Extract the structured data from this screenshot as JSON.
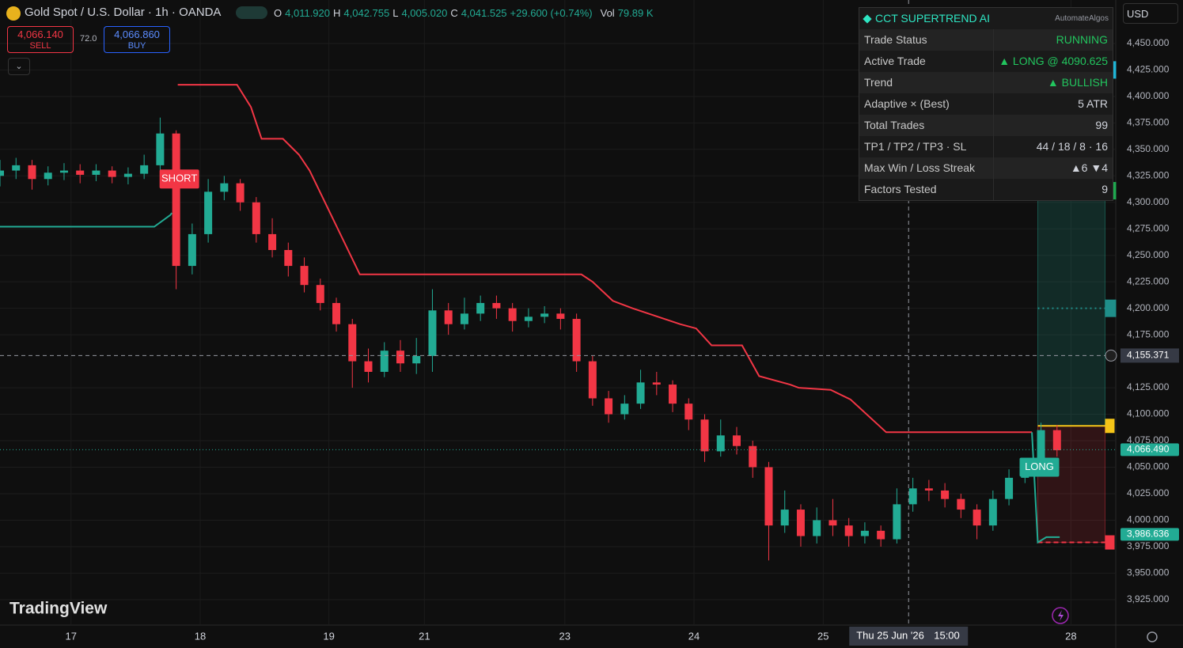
{
  "header": {
    "title": "Gold Spot / U.S. Dollar · 1h · OANDA",
    "ohlc": [
      {
        "key": "O",
        "value": "4,011.920"
      },
      {
        "key": "H",
        "value": "4,042.755"
      },
      {
        "key": "L",
        "value": "4,005.020"
      },
      {
        "key": "C",
        "value": "4,041.525"
      }
    ],
    "change": "+29.600 (+0.74%)",
    "volume_key": "Vol",
    "volume": "79.89 K"
  },
  "order": {
    "sell_price": "4,066.140",
    "sell": "SELL",
    "spread": "72.0",
    "buy_price": "4,066.860",
    "buy": "BUY"
  },
  "currency": "USD",
  "watermark": "TradingView",
  "panel": {
    "title": "CCT SUPERTREND AI",
    "author": "AutomateAlgos",
    "rows": [
      [
        "Trade Status",
        "RUNNING"
      ],
      [
        "Active Trade",
        "▲ LONG @ 4090.625"
      ],
      [
        "Trend",
        "▲ BULLISH"
      ],
      [
        "Adaptive × (Best)",
        "5  ATR"
      ],
      [
        "Total Trades",
        "99"
      ],
      [
        "TP1 / TP2 / TP3 · SL",
        "44 / 18 / 8 · 16"
      ],
      [
        "Max Win / Loss Streak",
        "▲6  ▼4"
      ],
      [
        "Factors Tested",
        "9"
      ]
    ],
    "value_colors": [
      "#22c55e",
      "#22c55e",
      "#22c55e",
      "#d1d4dc",
      "#d1d4dc",
      "#d1d4dc",
      "#d1d4dc",
      "#d1d4dc"
    ]
  },
  "chart_data": {
    "type": "candlestick",
    "up_color": "#22ab94",
    "down_color": "#f23645",
    "x": [
      0,
      3,
      6,
      9,
      12,
      15,
      18,
      21,
      24,
      27,
      30,
      33,
      36,
      39,
      42,
      45,
      48,
      51,
      54,
      57,
      60,
      63,
      66,
      69,
      72,
      75,
      78,
      81,
      84,
      87,
      90,
      93,
      96,
      99,
      102,
      105,
      108,
      111,
      114,
      117,
      120,
      123,
      126,
      129,
      132,
      135,
      138,
      141,
      144,
      147,
      150,
      153,
      156,
      159,
      162,
      165,
      168,
      171,
      174,
      177,
      180,
      183,
      186,
      189,
      192,
      195,
      198
    ],
    "open": [
      4325,
      4330,
      4335,
      4322,
      4328,
      4330,
      4326,
      4330,
      4324,
      4327,
      4335,
      4365,
      4240,
      4270,
      4310,
      4318,
      4300,
      4270,
      4255,
      4240,
      4222,
      4205,
      4185,
      4150,
      4140,
      4160,
      4148,
      4155,
      4198,
      4185,
      4195,
      4205,
      4200,
      4188,
      4192,
      4195,
      4190,
      4150,
      4115,
      4100,
      4110,
      4130,
      4128,
      4110,
      4095,
      4065,
      4080,
      4070,
      4050,
      3995,
      4010,
      3985,
      4000,
      3995,
      3985,
      3990,
      3982,
      4015,
      4030,
      4028,
      4020,
      4010,
      3995,
      4020,
      4040,
      4050,
      4085
    ],
    "high": [
      4340,
      4342,
      4340,
      4334,
      4337,
      4336,
      4336,
      4334,
      4333,
      4345,
      4380,
      4368,
      4280,
      4322,
      4325,
      4322,
      4305,
      4285,
      4262,
      4248,
      4228,
      4210,
      4190,
      4162,
      4168,
      4170,
      4172,
      4218,
      4205,
      4210,
      4212,
      4212,
      4205,
      4200,
      4202,
      4200,
      4195,
      4155,
      4122,
      4118,
      4142,
      4140,
      4132,
      4115,
      4100,
      4095,
      4088,
      4075,
      4055,
      4028,
      4015,
      4012,
      4020,
      4002,
      3998,
      3995,
      4030,
      4040,
      4038,
      4035,
      4025,
      4015,
      4028,
      4048,
      4058,
      4092,
      4090
    ],
    "low": [
      4315,
      4322,
      4312,
      4316,
      4321,
      4318,
      4320,
      4318,
      4317,
      4322,
      4330,
      4218,
      4232,
      4262,
      4302,
      4292,
      4262,
      4248,
      4230,
      4215,
      4198,
      4178,
      4125,
      4130,
      4135,
      4140,
      4138,
      4140,
      4175,
      4180,
      4188,
      4190,
      4178,
      4182,
      4186,
      4180,
      4140,
      4108,
      4092,
      4095,
      4105,
      4118,
      4102,
      4085,
      4055,
      4060,
      4062,
      4040,
      3962,
      3988,
      3975,
      3978,
      3985,
      3975,
      3978,
      3975,
      3978,
      4008,
      4018,
      4012,
      4002,
      3982,
      3990,
      4014,
      4035,
      4045,
      4060
    ],
    "close": [
      4330,
      4335,
      4322,
      4328,
      4330,
      4326,
      4330,
      4324,
      4327,
      4335,
      4365,
      4240,
      4270,
      4310,
      4318,
      4300,
      4270,
      4255,
      4240,
      4222,
      4205,
      4185,
      4150,
      4140,
      4160,
      4148,
      4155,
      4198,
      4185,
      4195,
      4205,
      4200,
      4188,
      4192,
      4195,
      4190,
      4150,
      4115,
      4100,
      4110,
      4130,
      4128,
      4110,
      4095,
      4065,
      4080,
      4070,
      4050,
      3995,
      4010,
      3985,
      4000,
      3995,
      3985,
      3990,
      3982,
      4015,
      4030,
      4028,
      4020,
      4010,
      3995,
      4020,
      4040,
      4050,
      4085,
      4066
    ],
    "xlim": [
      0,
      209
    ],
    "ylim": [
      3901,
      4491
    ],
    "xticks": [
      {
        "value": 13.3,
        "label": "17"
      },
      {
        "value": 37.5,
        "label": "18"
      },
      {
        "value": 61.6,
        "label": "19"
      },
      {
        "value": 79.5,
        "label": "21"
      },
      {
        "value": 105.8,
        "label": "23"
      },
      {
        "value": 130,
        "label": "24"
      },
      {
        "value": 154.2,
        "label": "25"
      },
      {
        "value": 200.6,
        "label": "28"
      }
    ],
    "yticks": [
      {
        "value": 4450,
        "label": "4,450.000"
      },
      {
        "value": 4425,
        "label": "4,425.000"
      },
      {
        "value": 4400,
        "label": "4,400.000"
      },
      {
        "value": 4375,
        "label": "4,375.000"
      },
      {
        "value": 4350,
        "label": "4,350.000"
      },
      {
        "value": 4325,
        "label": "4,325.000"
      },
      {
        "value": 4300,
        "label": "4,300.000"
      },
      {
        "value": 4275,
        "label": "4,275.000"
      },
      {
        "value": 4250,
        "label": "4,250.000"
      },
      {
        "value": 4225,
        "label": "4,225.000"
      },
      {
        "value": 4200,
        "label": "4,200.000"
      },
      {
        "value": 4175,
        "label": "4,175.000"
      },
      {
        "value": 4125,
        "label": "4,125.000"
      },
      {
        "value": 4100,
        "label": "4,100.000"
      },
      {
        "value": 4075,
        "label": "4,075.000"
      },
      {
        "value": 4050,
        "label": "4,050.000"
      },
      {
        "value": 4025,
        "label": "4,025.000"
      },
      {
        "value": 4000,
        "label": "4,000.000"
      },
      {
        "value": 3975,
        "label": "3,975.000"
      },
      {
        "value": 3950,
        "label": "3,950.000"
      },
      {
        "value": 3925,
        "label": "3,925.000"
      }
    ],
    "grid": true,
    "supertrend": [
      {
        "color": "#f23645",
        "x": [
          33.3,
          44.4,
          47,
          49,
          53,
          56,
          58,
          67.4,
          108.9,
          111,
          114.8,
          118.5,
          127.4,
          130.4,
          133.3,
          139,
          142.2,
          148,
          149.6,
          155.6,
          159.3,
          166,
          193.3
        ],
        "values": [
          4411,
          4411,
          4390,
          4360,
          4360,
          4345,
          4330,
          4232,
          4232,
          4225,
          4207,
          4200,
          4185,
          4181,
          4165,
          4165,
          4136,
          4128,
          4125,
          4123,
          4114,
          4083,
          4083
        ]
      },
      {
        "color": "#22ab94",
        "x": [
          0,
          28.9,
          31.9,
          32.2
        ],
        "values": [
          4277,
          4277,
          4288,
          4290
        ]
      },
      {
        "color": "#22ab94",
        "x": [
          193.3,
          194.4,
          196,
          198.5
        ],
        "values": [
          4083,
          3979,
          3984,
          3984
        ]
      }
    ],
    "signals": [
      {
        "label": "SHORT",
        "x": 33.3,
        "value": 4322,
        "color": "#f23645"
      },
      {
        "label": "LONG",
        "x": 194.4,
        "value": 4050,
        "color": "#22ab94"
      }
    ],
    "position": {
      "x": [
        194.4,
        207
      ],
      "entry": 4089,
      "stop": 3979,
      "targets": [
        4200,
        4311,
        4425
      ],
      "target_colors": [
        "#1f8f8a",
        "#1fa84f",
        "#1fb5d6"
      ]
    },
    "price_labels": [
      {
        "value": 4066.49,
        "label": "4,066.490",
        "color": "#22ab94"
      },
      {
        "value": 3986.636,
        "label": "3,986.636",
        "color": "#22ab94"
      }
    ],
    "crosshair": {
      "x": 170.2,
      "value": 4155.371,
      "label": "4,155.371",
      "date": "Thu 25 Jun '26",
      "time": "15:00"
    }
  }
}
